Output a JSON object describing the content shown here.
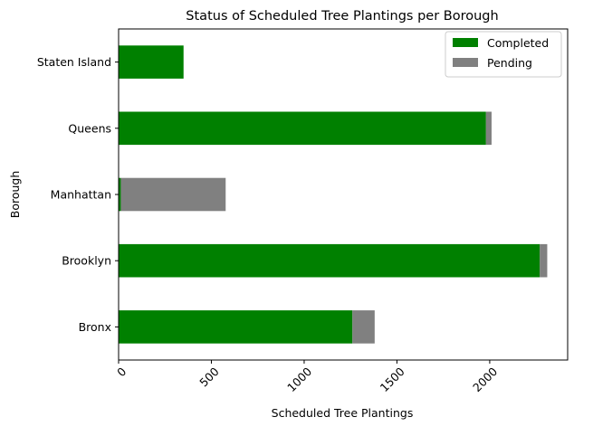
{
  "chart_data": {
    "type": "bar",
    "orientation": "horizontal",
    "stacked": true,
    "title": "Status of Scheduled Tree Plantings per Borough",
    "xlabel": "Scheduled Tree Plantings",
    "ylabel": "Borough",
    "categories": [
      "Bronx",
      "Brooklyn",
      "Manhattan",
      "Queens",
      "Staten Island"
    ],
    "series": [
      {
        "name": "Completed",
        "color": "#008000",
        "values": [
          1260,
          2270,
          12,
          1980,
          350
        ]
      },
      {
        "name": "Pending",
        "color": "#808080",
        "values": [
          120,
          40,
          565,
          30,
          0
        ]
      }
    ],
    "xlim": [
      0,
      2420
    ],
    "xticks": [
      0,
      500,
      1000,
      1500,
      2000
    ],
    "xtick_labels": [
      "0",
      "500",
      "1000",
      "1500",
      "2000"
    ],
    "xtick_rotation": 45,
    "grid": false,
    "legend": "top-right"
  }
}
